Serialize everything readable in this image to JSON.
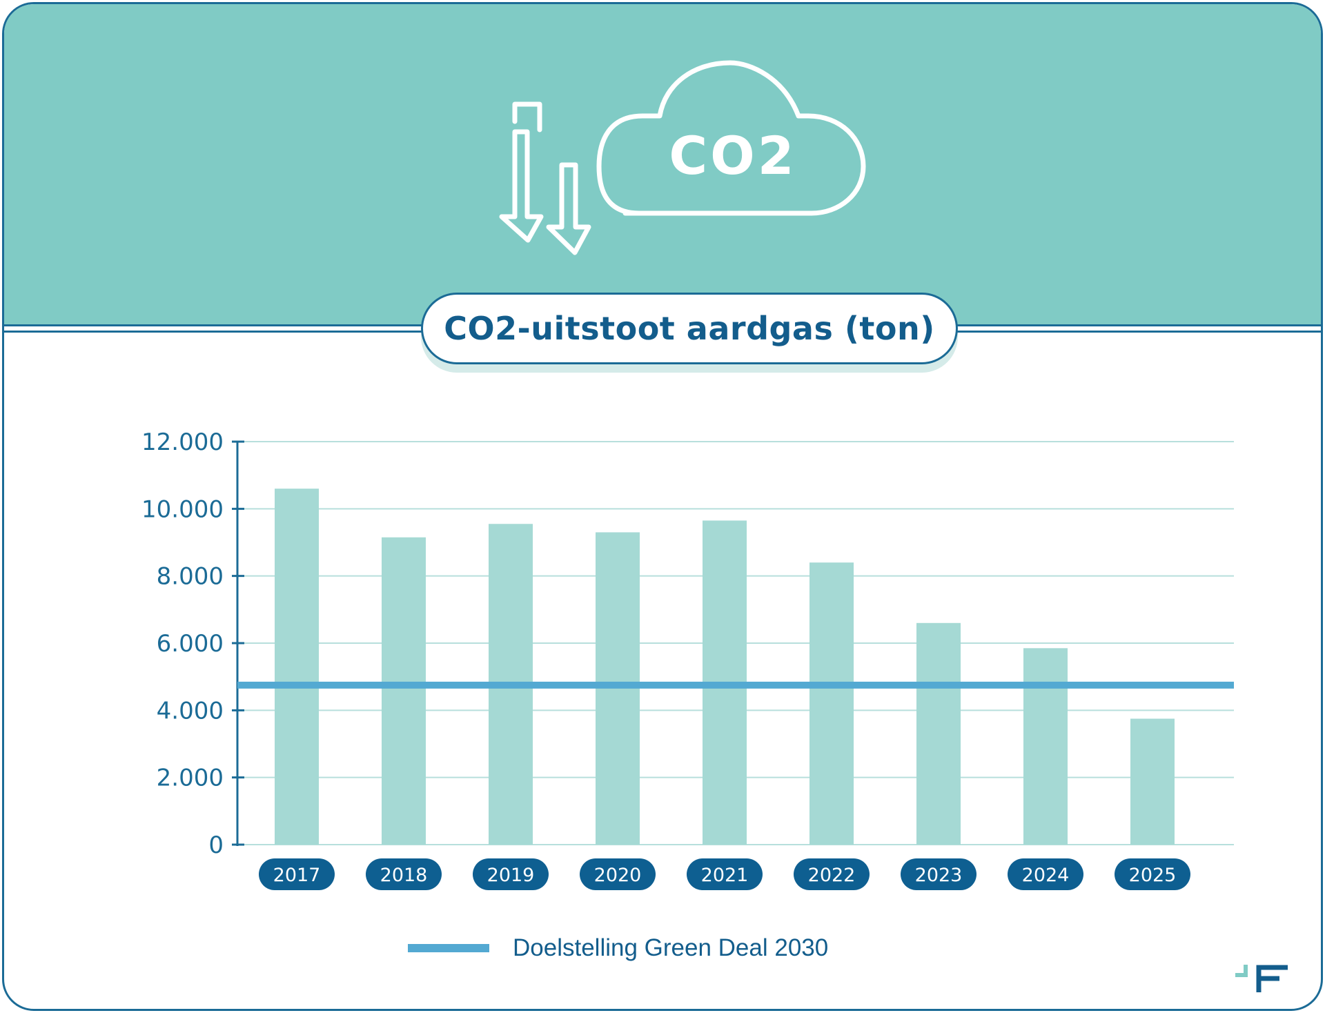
{
  "header": {
    "cloud_text": "CO2",
    "icon": "co2-cloud-down-arrows-icon"
  },
  "colors": {
    "banner": "#80cbc5",
    "bar": "#a5d9d4",
    "target_line": "#53a9d2",
    "axis": "#1b6b96",
    "title_text": "#135d8c",
    "year_pill": "#0e5f91"
  },
  "chart_data": {
    "type": "bar",
    "title": "CO2-uitstoot aardgas (ton)",
    "categories": [
      "2017",
      "2018",
      "2019",
      "2020",
      "2021",
      "2022",
      "2023",
      "2024",
      "2025"
    ],
    "values": [
      10600,
      9150,
      9550,
      9300,
      9650,
      8400,
      6600,
      5850,
      3750
    ],
    "ylim": [
      0,
      12000
    ],
    "yticks": [
      {
        "value": 0,
        "label": "0"
      },
      {
        "value": 2000,
        "label": "2.000"
      },
      {
        "value": 4000,
        "label": "4.000"
      },
      {
        "value": 6000,
        "label": "6.000"
      },
      {
        "value": 8000,
        "label": "8.000"
      },
      {
        "value": 10000,
        "label": "10.000"
      },
      {
        "value": 12000,
        "label": "12.000"
      }
    ],
    "grid": true,
    "reference_line": {
      "name": "Doelstelling Green Deal 2030",
      "value": 4750
    },
    "legend": {
      "position": "bottom",
      "entries": [
        "Doelstelling Green Deal 2030"
      ]
    }
  },
  "brand_logo": "company-logo-icon"
}
